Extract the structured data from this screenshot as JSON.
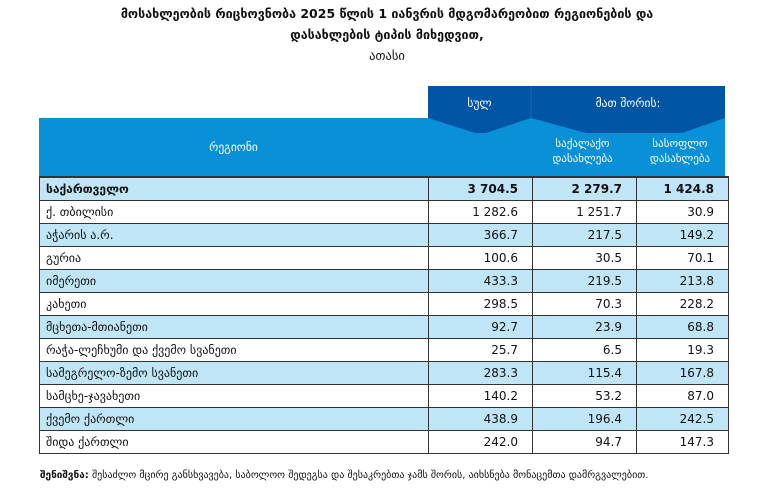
{
  "title_line1": "მოსახლეობის რიცხოვნობა 2025 წლის 1 იანვრის მდგომარეობით რეგიონების და",
  "title_line2": "დასახლების ტიპის მიხედვით,",
  "unit": "ათასი",
  "header": {
    "region": "რეგიონი",
    "total": "სულ",
    "of_which": "მათ შორის:",
    "urban": "საქალაქო დასახლება",
    "rural": "სასოფლო დასახლება"
  },
  "colors": {
    "dark_header": "#0055a5",
    "light_header": "#0a90d6",
    "row_fill": "#bfe5f7"
  },
  "rows": [
    {
      "region": "საქართველო",
      "total": "3 704.5",
      "urban": "2 279.7",
      "rural": "1 424.8"
    },
    {
      "region": "ქ. თბილისი",
      "total": "1 282.6",
      "urban": "1 251.7",
      "rural": "30.9"
    },
    {
      "region": "აჭარის ა.რ.",
      "total": "366.7",
      "urban": "217.5",
      "rural": "149.2"
    },
    {
      "region": "გურია",
      "total": "100.6",
      "urban": "30.5",
      "rural": "70.1"
    },
    {
      "region": "იმერეთი",
      "total": "433.3",
      "urban": "219.5",
      "rural": "213.8"
    },
    {
      "region": "კახეთი",
      "total": "298.5",
      "urban": "70.3",
      "rural": "228.2"
    },
    {
      "region": "მცხეთა-მთიანეთი",
      "total": "92.7",
      "urban": "23.9",
      "rural": "68.8"
    },
    {
      "region": "რაჭა-ლეჩხუმი და ქვემო სვანეთი",
      "total": "25.7",
      "urban": "6.5",
      "rural": "19.3"
    },
    {
      "region": "სამეგრელო-ზემო სვანეთი",
      "total": "283.3",
      "urban": "115.4",
      "rural": "167.8"
    },
    {
      "region": "სამცხე-ჯავახეთი",
      "total": "140.2",
      "urban": "53.2",
      "rural": "87.0"
    },
    {
      "region": "ქვემო ქართლი",
      "total": "438.9",
      "urban": "196.4",
      "rural": "242.5"
    },
    {
      "region": "შიდა ქართლი",
      "total": "242.0",
      "urban": "94.7",
      "rural": "147.3"
    }
  ],
  "note": {
    "label": "შენიშვნა:",
    "text": " შესაძლო მცირე განსხვავება, საბოლოო შედეგსა და შესაკრებთა ჯამს შორის, აიხსნება მონაცემთა დამრგვალებით."
  }
}
